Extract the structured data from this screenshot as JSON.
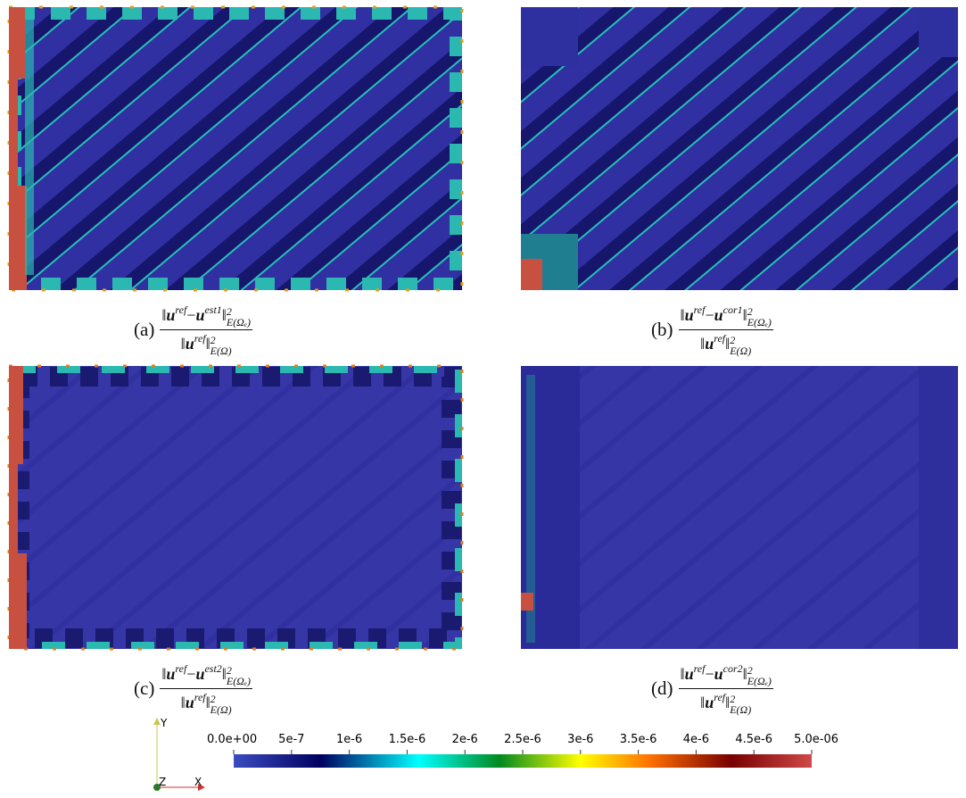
{
  "panels": [
    {
      "label": "(a)",
      "estimator": "est1"
    },
    {
      "label": "(b)",
      "estimator": "cor1"
    },
    {
      "label": "(c)",
      "estimator": "est2"
    },
    {
      "label": "(d)",
      "estimator": "cor2"
    }
  ],
  "formula": {
    "norm": "‖",
    "minus": "−",
    "u": "u",
    "ref": "ref",
    "power": "2",
    "energy_sub": "E(Ωₑ)",
    "energy_full": "E(Ω)"
  },
  "colorbar": {
    "range": [
      0,
      5e-06
    ],
    "ticks": [
      {
        "value": 0,
        "label": "0.0e+00"
      },
      {
        "value": 5e-07,
        "label": "5e-7"
      },
      {
        "value": 1e-06,
        "label": "1e-6"
      },
      {
        "value": 1.5e-06,
        "label": "1.5e-6"
      },
      {
        "value": 2e-06,
        "label": "2e-6"
      },
      {
        "value": 2.5e-06,
        "label": "2.5e-6"
      },
      {
        "value": 3e-06,
        "label": "3e-6"
      },
      {
        "value": 3.5e-06,
        "label": "3.5e-6"
      },
      {
        "value": 4e-06,
        "label": "4e-6"
      },
      {
        "value": 4.5e-06,
        "label": "4.5e-6"
      },
      {
        "value": 5e-06,
        "label": "5.0e-06"
      }
    ]
  },
  "axes": {
    "x": "X",
    "y": "Y",
    "z": "Z"
  }
}
